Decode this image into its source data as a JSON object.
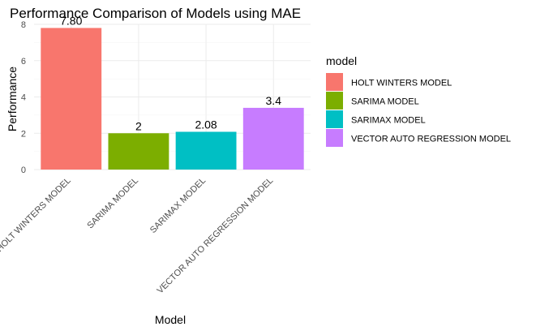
{
  "chart_data": {
    "type": "bar",
    "title": "Performance Comparison of Models using MAE",
    "xlabel": "Model",
    "ylabel": "Performance",
    "ylim": [
      0,
      8
    ],
    "yticks": [
      0,
      2,
      4,
      6,
      8
    ],
    "grid": true,
    "categories": [
      "HOLT WINTERS MODEL",
      "SARIMA MODEL",
      "SARIMAX MODEL",
      "VECTOR AUTO REGRESSION MODEL"
    ],
    "values": [
      7.8,
      2,
      2.08,
      3.4
    ],
    "data_labels": [
      "7.80",
      "2",
      "2.08",
      "3.4"
    ],
    "colors": [
      "#f8766d",
      "#7cae00",
      "#00bfc4",
      "#c77cff"
    ],
    "legend": {
      "title": "model",
      "position": "right",
      "entries": [
        "HOLT WINTERS MODEL",
        "SARIMA MODEL",
        "SARIMAX MODEL",
        "VECTOR AUTO REGRESSION MODEL"
      ]
    }
  }
}
